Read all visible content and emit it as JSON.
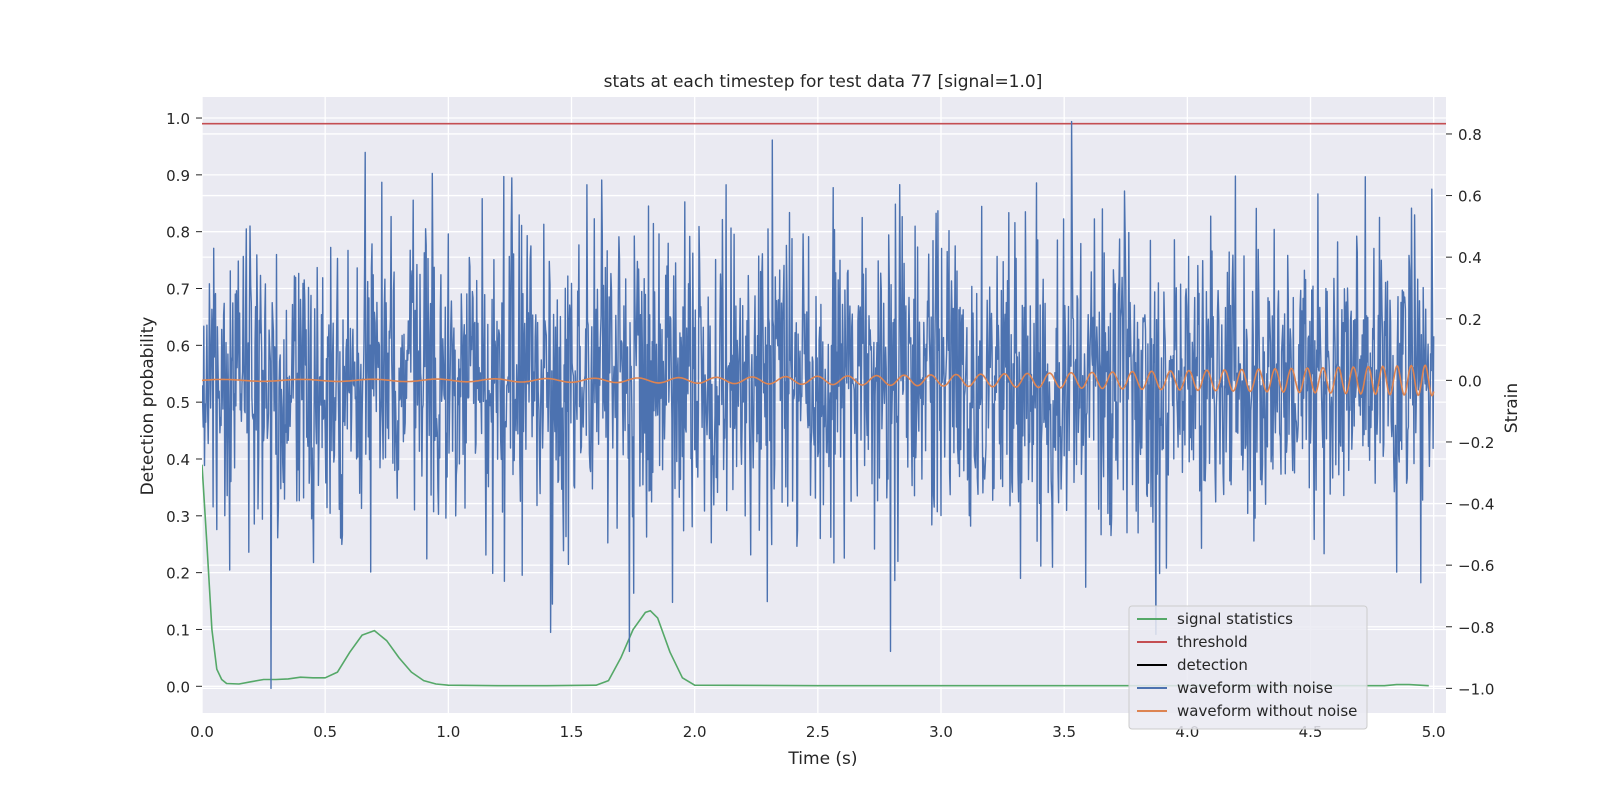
{
  "chart_data": {
    "type": "line",
    "title": "stats at each timestep for test data 77 [signal=1.0]",
    "xlabel": "Time (s)",
    "ylabel_left": "Detection probability",
    "ylabel_right": "Strain",
    "xlim": [
      0.0,
      5.05
    ],
    "ylim_left": [
      -0.047,
      1.037
    ],
    "ylim_right": [
      -1.08,
      0.92
    ],
    "x_ticks": [
      0.0,
      0.5,
      1.0,
      1.5,
      2.0,
      2.5,
      3.0,
      3.5,
      4.0,
      4.5,
      5.0
    ],
    "x_tick_labels": [
      "0.0",
      "0.5",
      "1.0",
      "1.5",
      "2.0",
      "2.5",
      "3.0",
      "3.5",
      "4.0",
      "4.5",
      "5.0"
    ],
    "y_ticks_left": [
      0.0,
      0.1,
      0.2,
      0.3,
      0.4,
      0.5,
      0.6,
      0.7,
      0.8,
      0.9,
      1.0
    ],
    "y_tick_labels_left": [
      "0.0",
      "0.1",
      "0.2",
      "0.3",
      "0.4",
      "0.5",
      "0.6",
      "0.7",
      "0.8",
      "0.9",
      "1.0"
    ],
    "y_ticks_right": [
      -1.0,
      -0.8,
      -0.6,
      -0.4,
      -0.2,
      0.0,
      0.2,
      0.4,
      0.6,
      0.8
    ],
    "y_tick_labels_right": [
      "−1.0",
      "−0.8",
      "−0.6",
      "−0.4",
      "−0.2",
      "0.0",
      "0.2",
      "0.4",
      "0.6",
      "0.8"
    ],
    "grid": true,
    "background": "#eaeaf2",
    "legend_position": "lower-right",
    "legend": [
      {
        "label": "signal statistics",
        "color": "#55a868"
      },
      {
        "label": "threshold",
        "color": "#c44e52"
      },
      {
        "label": "detection",
        "color": "#000000"
      },
      {
        "label": "waveform with noise",
        "color": "#4c72b0"
      },
      {
        "label": "waveform without noise",
        "color": "#dd8452"
      }
    ],
    "series": [
      {
        "name": "signal statistics",
        "axis": "left",
        "color": "#55a868",
        "x": [
          0.0,
          0.02,
          0.04,
          0.06,
          0.08,
          0.1,
          0.15,
          0.2,
          0.25,
          0.3,
          0.35,
          0.4,
          0.45,
          0.5,
          0.55,
          0.6,
          0.65,
          0.7,
          0.75,
          0.8,
          0.85,
          0.9,
          0.95,
          1.0,
          1.2,
          1.4,
          1.6,
          1.65,
          1.7,
          1.75,
          1.8,
          1.82,
          1.85,
          1.9,
          1.95,
          2.0,
          2.5,
          3.0,
          3.5,
          4.0,
          4.5,
          4.8,
          4.85,
          4.9,
          4.98
        ],
        "y": [
          0.39,
          0.25,
          0.1,
          0.03,
          0.012,
          0.005,
          0.004,
          0.008,
          0.012,
          0.012,
          0.013,
          0.016,
          0.015,
          0.015,
          0.025,
          0.06,
          0.09,
          0.098,
          0.08,
          0.05,
          0.025,
          0.01,
          0.004,
          0.002,
          0.001,
          0.001,
          0.002,
          0.01,
          0.05,
          0.1,
          0.13,
          0.133,
          0.12,
          0.06,
          0.015,
          0.002,
          0.001,
          0.001,
          0.001,
          0.001,
          0.001,
          0.001,
          0.003,
          0.003,
          0.001
        ]
      },
      {
        "name": "threshold",
        "axis": "left",
        "color": "#c44e52",
        "x": [
          0.0,
          5.05
        ],
        "y": [
          0.99,
          0.99
        ]
      },
      {
        "name": "waveform with noise",
        "axis": "right",
        "color": "#4c72b0",
        "x_range": [
          0.0,
          5.0
        ],
        "mean": 0.0,
        "std": 0.25,
        "min": -1.0,
        "max": 0.84
      },
      {
        "name": "waveform without noise",
        "axis": "right",
        "color": "#dd8452",
        "x_range": [
          0.0,
          5.0
        ],
        "chirp": true,
        "amplitude_start": 0.003,
        "amplitude_end": 0.05,
        "frequency_start_hz": 3,
        "frequency_end_hz": 18
      }
    ]
  }
}
